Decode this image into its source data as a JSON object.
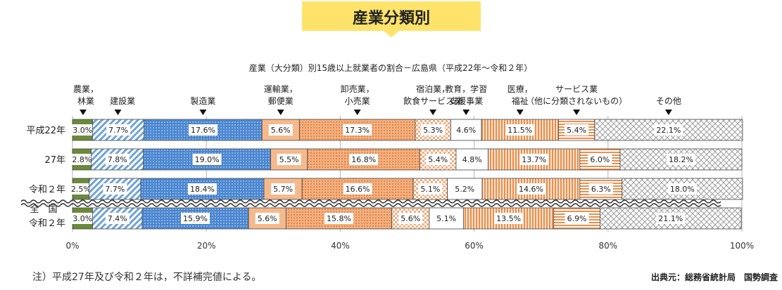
{
  "banner": {
    "title": "産業分類別",
    "color": "#fde36a"
  },
  "chart_data": {
    "type": "bar",
    "orientation": "horizontal",
    "stacked": true,
    "percent": true,
    "title": "産業（大分類）別15歳以上就業者の割合－広島県（平成22年～令和２年）",
    "row_labels": [
      [
        "平成22年"
      ],
      [
        "27年"
      ],
      [
        "令和２年"
      ],
      [
        "全　国",
        "令和２年"
      ]
    ],
    "categories": [
      {
        "label": [
          "農業，",
          "林業"
        ],
        "color": "#6b8a3a",
        "pattern": "solid"
      },
      {
        "label": [
          "建設業"
        ],
        "color": "#6fa3d8",
        "pattern": "diagonal-stripes"
      },
      {
        "label": [
          "製造業"
        ],
        "color": "#4a86d0",
        "pattern": "dots"
      },
      {
        "label": [
          "運輸業，",
          "郵便業"
        ],
        "color": "#f6b98c",
        "pattern": "solid"
      },
      {
        "label": [
          "卸売業，",
          "小売業"
        ],
        "color": "#f0a46e",
        "pattern": "dots"
      },
      {
        "label": [
          "宿泊業，",
          "飲食サービス業"
        ],
        "color": "#f3ae7e",
        "pattern": "checker"
      },
      {
        "label": [
          "教育，学習",
          "支援事業"
        ],
        "color": "#ffffff",
        "pattern": "solid"
      },
      {
        "label": [
          "医療，",
          "福祉"
        ],
        "color": "#e9904f",
        "pattern": "vertical-stripes"
      },
      {
        "label": [
          "サービス業",
          "（他に分類されないもの）"
        ],
        "color": "#e9904f",
        "pattern": "horizontal-stripes"
      },
      {
        "label": [
          "その他"
        ],
        "color": "#9e9e9e",
        "pattern": "crosshatch"
      }
    ],
    "rows": [
      {
        "values": [
          3.0,
          7.7,
          17.6,
          5.6,
          17.3,
          5.3,
          4.6,
          11.5,
          5.4,
          22.1
        ],
        "labels": [
          "3.0%",
          "7.7%",
          "17.6%",
          "5.6%",
          "17.3%",
          "5.3%",
          "4.6%",
          "11.5%",
          "5.4%",
          "22.1%"
        ]
      },
      {
        "values": [
          2.8,
          7.8,
          19.0,
          5.5,
          16.8,
          5.4,
          4.8,
          13.7,
          6.0,
          18.2
        ],
        "labels": [
          "2.8%",
          "7.8%",
          "19.0%",
          "5.5%",
          "16.8%",
          "5.4%",
          "4.8%",
          "13.7%",
          "6.0%",
          "18.2%"
        ]
      },
      {
        "values": [
          2.5,
          7.7,
          18.4,
          5.7,
          16.6,
          5.1,
          5.2,
          14.6,
          6.3,
          18.0
        ],
        "labels": [
          "2.5%",
          "7.7%",
          "18.4%",
          "5.7%",
          "16.6%",
          "5.1%",
          "5.2%",
          "14.6%",
          "6.3%",
          "18.0%"
        ]
      },
      {
        "values": [
          3.0,
          7.4,
          15.9,
          5.6,
          15.8,
          5.6,
          5.1,
          13.5,
          6.9,
          21.1
        ],
        "labels": [
          "3.0%",
          "7.4%",
          "15.9%",
          "5.6%",
          "15.8%",
          "5.6%",
          "5.1%",
          "13.5%",
          "6.9%",
          "21.1%"
        ]
      }
    ],
    "x_ticks": [
      0,
      20,
      40,
      60,
      80,
      100
    ],
    "x_tick_labels": [
      "0%",
      "20%",
      "40%",
      "60%",
      "80%",
      "100%"
    ],
    "xlim": [
      0,
      100
    ],
    "grid": true
  },
  "footer": {
    "note": "注）平成27年及び令和２年は，不詳補完値による。",
    "source": "出典元：総務省統計局　国勢調査"
  }
}
